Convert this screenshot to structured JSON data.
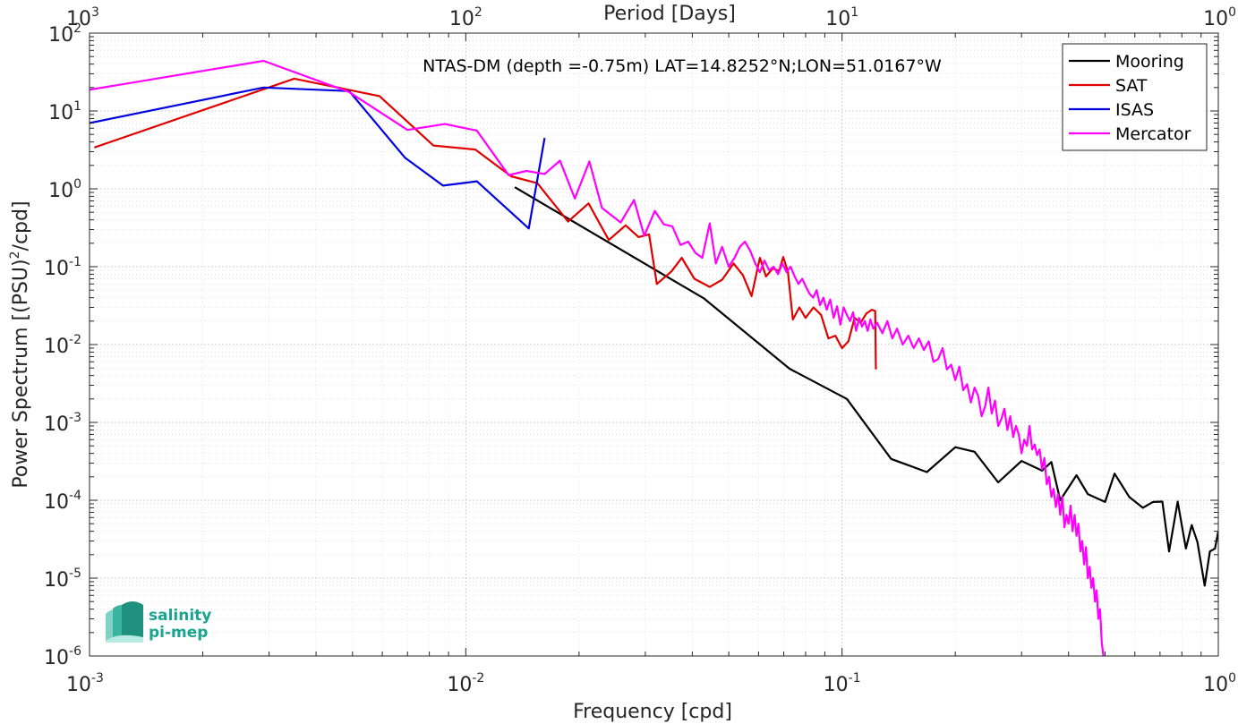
{
  "chart_data": {
    "type": "line",
    "title": "NTAS-DM (depth =-0.75m) LAT=14.8252°N;LON=51.0167°W",
    "xlabel": "Frequency [cpd]",
    "ylabel": "Power Spectrum [(PSU)²/cpd]",
    "ylabel_base": "Power Spectrum [(PSU)",
    "ylabel_sup": "2",
    "ylabel_tail": "/cpd]",
    "top_xlabel": "Period [Days]",
    "x_scale": "log",
    "y_scale": "log",
    "xlim": [
      0.001,
      1
    ],
    "ylim": [
      1e-06,
      100
    ],
    "grid": true,
    "legend_position": "top-right",
    "x_ticks": [
      {
        "value": 0.001,
        "base": "10",
        "exp": "-3"
      },
      {
        "value": 0.01,
        "base": "10",
        "exp": "-2"
      },
      {
        "value": 0.1,
        "base": "10",
        "exp": "-1"
      },
      {
        "value": 1,
        "base": "10",
        "exp": "0"
      }
    ],
    "top_ticks": [
      {
        "value": 0.001,
        "base": "10",
        "exp": "3"
      },
      {
        "value": 0.01,
        "base": "10",
        "exp": "2"
      },
      {
        "value": 0.1,
        "base": "10",
        "exp": "1"
      },
      {
        "value": 1,
        "base": "10",
        "exp": "0"
      }
    ],
    "y_ticks": [
      {
        "value": 1e-06,
        "base": "10",
        "exp": "-6"
      },
      {
        "value": 1e-05,
        "base": "10",
        "exp": "-5"
      },
      {
        "value": 0.0001,
        "base": "10",
        "exp": "-4"
      },
      {
        "value": 0.001,
        "base": "10",
        "exp": "-3"
      },
      {
        "value": 0.01,
        "base": "10",
        "exp": "-2"
      },
      {
        "value": 0.1,
        "base": "10",
        "exp": "-1"
      },
      {
        "value": 1,
        "base": "10",
        "exp": "0"
      },
      {
        "value": 10,
        "base": "10",
        "exp": "1"
      },
      {
        "value": 100,
        "base": "10",
        "exp": "2"
      }
    ],
    "series": [
      {
        "name": "Mooring",
        "color": "#000000",
        "points": [
          [
            0.0135,
            1.05
          ],
          [
            0.043,
            0.039
          ],
          [
            0.0725,
            0.0049
          ],
          [
            0.103,
            0.002
          ],
          [
            0.135,
            0.00034
          ],
          [
            0.168,
            0.00023
          ],
          [
            0.2,
            0.00048
          ],
          [
            0.225,
            0.00042
          ],
          [
            0.26,
            0.00017
          ],
          [
            0.3,
            0.00032
          ],
          [
            0.34,
            0.00024
          ],
          [
            0.36,
            0.00031
          ],
          [
            0.38,
            0.0001
          ],
          [
            0.42,
            0.00021
          ],
          [
            0.45,
            0.00012
          ],
          [
            0.5,
            9.5e-05
          ],
          [
            0.53,
            0.00022
          ],
          [
            0.58,
            0.00011
          ],
          [
            0.63,
            8e-05
          ],
          [
            0.67,
            9.5e-05
          ],
          [
            0.71,
            9.6e-05
          ],
          [
            0.74,
            2.2e-05
          ],
          [
            0.78,
            9.6e-05
          ],
          [
            0.82,
            2.4e-05
          ],
          [
            0.85,
            4.8e-05
          ],
          [
            0.88,
            2.9e-05
          ],
          [
            0.92,
            8e-06
          ],
          [
            0.95,
            2.2e-05
          ],
          [
            0.98,
            2.4e-05
          ],
          [
            1.0,
            4e-05
          ]
        ]
      },
      {
        "name": "SAT",
        "color": "#e00000",
        "points": [
          [
            0.00103,
            3.4
          ],
          [
            0.0035,
            26
          ],
          [
            0.0059,
            15.5
          ],
          [
            0.0082,
            3.6
          ],
          [
            0.0106,
            3.2
          ],
          [
            0.0132,
            1.45
          ],
          [
            0.0155,
            1.18
          ],
          [
            0.0187,
            0.38
          ],
          [
            0.0212,
            0.65
          ],
          [
            0.024,
            0.22
          ],
          [
            0.0266,
            0.34
          ],
          [
            0.0288,
            0.24
          ],
          [
            0.0307,
            0.26
          ],
          [
            0.0322,
            0.06
          ],
          [
            0.0352,
            0.087
          ],
          [
            0.0375,
            0.13
          ],
          [
            0.0405,
            0.07
          ],
          [
            0.0445,
            0.055
          ],
          [
            0.048,
            0.068
          ],
          [
            0.0515,
            0.11
          ],
          [
            0.0545,
            0.078
          ],
          [
            0.0575,
            0.042
          ],
          [
            0.0605,
            0.13
          ],
          [
            0.0628,
            0.075
          ],
          [
            0.0655,
            0.095
          ],
          [
            0.068,
            0.088
          ],
          [
            0.0698,
            0.133
          ],
          [
            0.0718,
            0.086
          ],
          [
            0.074,
            0.021
          ],
          [
            0.077,
            0.03
          ],
          [
            0.08,
            0.022
          ],
          [
            0.084,
            0.03
          ],
          [
            0.088,
            0.024
          ],
          [
            0.092,
            0.012
          ],
          [
            0.096,
            0.013
          ],
          [
            0.1,
            0.009
          ],
          [
            0.104,
            0.011
          ],
          [
            0.108,
            0.022
          ],
          [
            0.112,
            0.019
          ],
          [
            0.116,
            0.025
          ],
          [
            0.12,
            0.028
          ],
          [
            0.1225,
            0.027
          ],
          [
            0.123,
            0.0048
          ]
        ]
      },
      {
        "name": "ISAS",
        "color": "#0000e0",
        "points": [
          [
            0.001,
            7
          ],
          [
            0.0029,
            20
          ],
          [
            0.0049,
            18
          ],
          [
            0.0069,
            2.5
          ],
          [
            0.0087,
            1.1
          ],
          [
            0.0107,
            1.25
          ],
          [
            0.0147,
            0.31
          ],
          [
            0.0162,
            4.5
          ]
        ]
      },
      {
        "name": "Mercator",
        "color": "#ff00ff",
        "points": [
          [
            0.001,
            18.7
          ],
          [
            0.0029,
            44
          ],
          [
            0.0049,
            17.5
          ],
          [
            0.007,
            5.7
          ],
          [
            0.0088,
            6.8
          ],
          [
            0.0107,
            5.6
          ],
          [
            0.013,
            1.5
          ],
          [
            0.0145,
            1.7
          ],
          [
            0.0162,
            1.55
          ],
          [
            0.0178,
            2.3
          ],
          [
            0.0195,
            0.75
          ],
          [
            0.0213,
            2.25
          ],
          [
            0.023,
            0.57
          ],
          [
            0.0258,
            0.37
          ],
          [
            0.028,
            0.72
          ],
          [
            0.0298,
            0.25
          ],
          [
            0.0318,
            0.52
          ],
          [
            0.0336,
            0.35
          ],
          [
            0.0354,
            0.33
          ],
          [
            0.0372,
            0.19
          ],
          [
            0.039,
            0.21
          ],
          [
            0.0408,
            0.15
          ],
          [
            0.0425,
            0.13
          ],
          [
            0.0445,
            0.36
          ],
          [
            0.0462,
            0.11
          ],
          [
            0.048,
            0.18
          ],
          [
            0.05,
            0.1
          ],
          [
            0.0518,
            0.13
          ],
          [
            0.0535,
            0.18
          ],
          [
            0.0552,
            0.21
          ],
          [
            0.057,
            0.16
          ],
          [
            0.0588,
            0.11
          ],
          [
            0.0605,
            0.085
          ],
          [
            0.0622,
            0.12
          ],
          [
            0.064,
            0.09
          ],
          [
            0.0658,
            0.1
          ],
          [
            0.0676,
            0.08
          ],
          [
            0.0694,
            0.11
          ],
          [
            0.0712,
            0.085
          ],
          [
            0.073,
            0.1
          ],
          [
            0.0748,
            0.075
          ],
          [
            0.0766,
            0.06
          ],
          [
            0.0784,
            0.07
          ],
          [
            0.0802,
            0.055
          ],
          [
            0.082,
            0.045
          ],
          [
            0.0838,
            0.04
          ],
          [
            0.0856,
            0.05
          ],
          [
            0.0874,
            0.032
          ],
          [
            0.0892,
            0.04
          ],
          [
            0.091,
            0.028
          ],
          [
            0.093,
            0.038
          ],
          [
            0.095,
            0.022
          ],
          [
            0.097,
            0.031
          ],
          [
            0.099,
            0.018
          ],
          [
            0.101,
            0.03
          ],
          [
            0.103,
            0.024
          ],
          [
            0.105,
            0.02
          ],
          [
            0.107,
            0.026
          ],
          [
            0.109,
            0.015
          ],
          [
            0.111,
            0.022
          ],
          [
            0.113,
            0.017
          ],
          [
            0.115,
            0.02
          ],
          [
            0.117,
            0.015
          ],
          [
            0.119,
            0.021
          ],
          [
            0.121,
            0.016
          ],
          [
            0.124,
            0.019
          ],
          [
            0.128,
            0.014
          ],
          [
            0.132,
            0.02
          ],
          [
            0.136,
            0.012
          ],
          [
            0.14,
            0.016
          ],
          [
            0.145,
            0.01
          ],
          [
            0.15,
            0.013
          ],
          [
            0.155,
            0.009
          ],
          [
            0.16,
            0.012
          ],
          [
            0.165,
            0.0085
          ],
          [
            0.17,
            0.011
          ],
          [
            0.175,
            0.006
          ],
          [
            0.18,
            0.0065
          ],
          [
            0.185,
            0.009
          ],
          [
            0.19,
            0.0048
          ],
          [
            0.195,
            0.0055
          ],
          [
            0.2,
            0.0035
          ],
          [
            0.205,
            0.0052
          ],
          [
            0.21,
            0.0026
          ],
          [
            0.215,
            0.0031
          ],
          [
            0.22,
            0.0018
          ],
          [
            0.225,
            0.0028
          ],
          [
            0.23,
            0.0022
          ],
          [
            0.235,
            0.0012
          ],
          [
            0.24,
            0.0016
          ],
          [
            0.245,
            0.0028
          ],
          [
            0.25,
            0.0013
          ],
          [
            0.255,
            0.0019
          ],
          [
            0.26,
            0.0009
          ],
          [
            0.265,
            0.0011
          ],
          [
            0.27,
            0.0015
          ],
          [
            0.275,
            0.0008
          ],
          [
            0.28,
            0.0012
          ],
          [
            0.285,
            0.00065
          ],
          [
            0.29,
            0.0009
          ],
          [
            0.295,
            0.0007
          ],
          [
            0.3,
            0.0004
          ],
          [
            0.305,
            0.0006
          ],
          [
            0.31,
            0.0005
          ],
          [
            0.315,
            0.0009
          ],
          [
            0.32,
            0.00045
          ],
          [
            0.325,
            0.00052
          ],
          [
            0.33,
            0.00038
          ],
          [
            0.335,
            0.00045
          ],
          [
            0.34,
            0.00025
          ],
          [
            0.345,
            0.00035
          ],
          [
            0.35,
            0.00016
          ],
          [
            0.355,
            0.0002
          ],
          [
            0.36,
            0.00011
          ],
          [
            0.365,
            0.00014
          ],
          [
            0.37,
            8.2e-05
          ],
          [
            0.375,
            0.00012
          ],
          [
            0.38,
            6.5e-05
          ],
          [
            0.385,
            0.00011
          ],
          [
            0.39,
            4.5e-05
          ],
          [
            0.395,
            6.5e-05
          ],
          [
            0.4,
            5e-05
          ],
          [
            0.405,
            8.5e-05
          ],
          [
            0.41,
            4e-05
          ],
          [
            0.415,
            6.5e-05
          ],
          [
            0.42,
            3.5e-05
          ],
          [
            0.425,
            5e-05
          ],
          [
            0.43,
            2.2e-05
          ],
          [
            0.435,
            3e-05
          ],
          [
            0.44,
            1.5e-05
          ],
          [
            0.445,
            2.5e-05
          ],
          [
            0.45,
            1e-05
          ],
          [
            0.455,
            1.4e-05
          ],
          [
            0.46,
            7.5e-06
          ],
          [
            0.465,
            1e-05
          ],
          [
            0.47,
            5e-06
          ],
          [
            0.475,
            7e-06
          ],
          [
            0.48,
            3e-06
          ],
          [
            0.485,
            4e-06
          ],
          [
            0.49,
            1.5e-06
          ],
          [
            0.495,
            1e-06
          ]
        ]
      }
    ],
    "logo": {
      "line1": "salinity",
      "line2": "pi-mep"
    }
  }
}
